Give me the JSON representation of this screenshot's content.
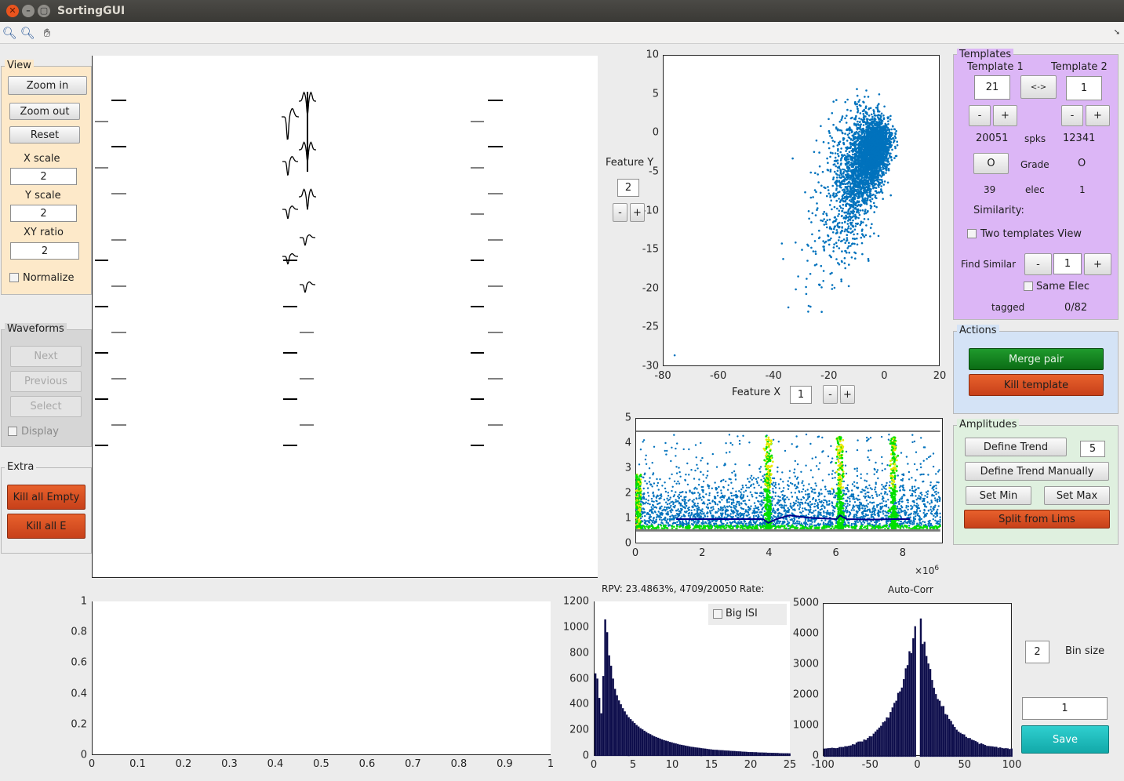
{
  "window": {
    "title": "SortingGUI"
  },
  "toolbar": {
    "zoom_in_icon": "zoom-in-icon",
    "zoom_out_icon": "zoom-out-icon",
    "pan_icon": "pan-hand-icon",
    "arrow_icon": "arrow-icon"
  },
  "view_panel": {
    "title": "View",
    "zoom_in": "Zoom in",
    "zoom_out": "Zoom out",
    "reset": "Reset",
    "x_scale_label": "X scale",
    "x_scale": "2",
    "y_scale_label": "Y scale",
    "y_scale": "2",
    "xy_ratio_label": "XY ratio",
    "xy_ratio": "2",
    "normalize": "Normalize"
  },
  "waveforms_panel": {
    "title": "Waveforms",
    "next": "Next",
    "previous": "Previous",
    "select": "Select",
    "display": "Display"
  },
  "extra_panel": {
    "title": "Extra",
    "kill_all_empty": "Kill all Empty",
    "kill_all_e": "Kill all E"
  },
  "feature": {
    "y_label": "Feature Y",
    "y_value": "2",
    "minus": "-",
    "plus": "+",
    "x_label": "Feature X",
    "x_value": "1"
  },
  "templates_panel": {
    "title": "Templates",
    "template1_label": "Template 1",
    "template2_label": "Template 2",
    "template1": "21",
    "template2": "1",
    "swap": "<->",
    "minus": "-",
    "plus": "+",
    "spks1": "20051",
    "spks_label": "spks",
    "spks2": "12341",
    "grade_button": "O",
    "grade_label": "Grade",
    "grade2": "O",
    "elec1": "39",
    "elec_label": "elec",
    "elec2": "1",
    "similarity_label": "Similarity:",
    "two_templates_view": "Two templates View",
    "find_similar_label": "Find Similar",
    "find_similar": "1",
    "same_elec": "Same Elec",
    "tagged_label": "tagged",
    "tagged_value": "0/82"
  },
  "actions_panel": {
    "title": "Actions",
    "merge_pair": "Merge pair",
    "kill_template": "Kill template"
  },
  "amplitudes_panel": {
    "title": "Amplitudes",
    "define_trend": "Define Trend",
    "trend_value": "5",
    "define_trend_manually": "Define Trend Manually",
    "set_min": "Set Min",
    "set_max": "Set Max",
    "split_from_lims": "Split from Lims"
  },
  "isi": {
    "rpv_text": "RPV: 23.4863%, 4709/20050 Rate:",
    "big_isi": "Big ISI"
  },
  "autocorr": {
    "title": "Auto-Corr",
    "bin_size_label": "Bin size",
    "bin_size": "2"
  },
  "save_panel": {
    "value": "1",
    "save": "Save"
  },
  "colors": {
    "scatter": "#0072bd",
    "trend": "#00008b",
    "highlight_green": "#00e000",
    "highlight_yellow": "#e8e800",
    "bars": "#0c0c4a"
  },
  "chart_data": [
    {
      "id": "feature-scatter",
      "type": "scatter",
      "xlim": [
        -80,
        20
      ],
      "ylim": [
        -30,
        10
      ],
      "xticks": [
        "-80",
        "-60",
        "-40",
        "-20",
        "0",
        "20"
      ],
      "yticks": [
        "10",
        "5",
        "0",
        "-5",
        "-10",
        "-15",
        "-20",
        "-25",
        "-30"
      ],
      "xlabel": "Feature X",
      "ylabel": "Feature Y",
      "cloud": {
        "center": [
          -12,
          -4
        ],
        "major_slope": 0.45,
        "n": 3500
      }
    },
    {
      "id": "amplitudes",
      "type": "scatter",
      "xlim": [
        0,
        9.2
      ],
      "ylim": [
        0,
        5
      ],
      "xticks": [
        "0",
        "2",
        "4",
        "6",
        "8"
      ],
      "yticks": [
        "5",
        "4",
        "3",
        "2",
        "1",
        "0"
      ],
      "x_multiplier": "×10",
      "x_exponent": "6",
      "lines": {
        "upper": 4.5,
        "lower": 0.55
      },
      "bursts": [
        3.95,
        6.1,
        7.7
      ],
      "trend": [
        [
          1.2,
          1.0
        ],
        [
          2.5,
          1.0
        ],
        [
          3.8,
          1.0
        ],
        [
          3.95,
          0.85
        ],
        [
          4.2,
          1.0
        ],
        [
          4.6,
          1.15
        ],
        [
          5.2,
          1.05
        ],
        [
          6.0,
          1.0
        ],
        [
          6.1,
          1.15
        ],
        [
          6.3,
          1.0
        ],
        [
          7.0,
          0.98
        ],
        [
          7.7,
          1.0
        ],
        [
          8.2,
          1.0
        ]
      ]
    },
    {
      "id": "empty-axes",
      "type": "line",
      "xlim": [
        0,
        1
      ],
      "ylim": [
        0,
        1
      ],
      "xticks": [
        "0",
        "0.1",
        "0.2",
        "0.3",
        "0.4",
        "0.5",
        "0.6",
        "0.7",
        "0.8",
        "0.9",
        "1"
      ],
      "yticks": [
        "1",
        "0.8",
        "0.6",
        "0.4",
        "0.2",
        "0"
      ]
    },
    {
      "id": "isi-histogram",
      "type": "bar",
      "xlim": [
        0,
        25
      ],
      "ylim": [
        0,
        1200
      ],
      "xticks": [
        "0",
        "5",
        "10",
        "15",
        "20",
        "25"
      ],
      "yticks": [
        "1200",
        "1000",
        "800",
        "600",
        "400",
        "200",
        "0"
      ],
      "values": [
        640,
        600,
        450,
        330,
        620,
        1060,
        960,
        780,
        700,
        600,
        520,
        470,
        430,
        400,
        370,
        345,
        320,
        300,
        285,
        270,
        255,
        240,
        228,
        215,
        205,
        195,
        185,
        175,
        168,
        160,
        152,
        146,
        140,
        134,
        128,
        122,
        118,
        113,
        108,
        104,
        100,
        96,
        92,
        88,
        85,
        82,
        79,
        76,
        73,
        70,
        68,
        66,
        64,
        62,
        60,
        58,
        56,
        54,
        52,
        50,
        48,
        47,
        46,
        45,
        44,
        43,
        42,
        41,
        40,
        39,
        38,
        37,
        36,
        35,
        34,
        33,
        32,
        31,
        30,
        30,
        29,
        28,
        28,
        27,
        26,
        26,
        25,
        25,
        24,
        24,
        23,
        23,
        22,
        22,
        21,
        21,
        20,
        20,
        20,
        19
      ]
    },
    {
      "id": "auto-corr",
      "type": "bar",
      "title": "Auto-Corr",
      "xlim": [
        -100,
        100
      ],
      "ylim": [
        0,
        5000
      ],
      "xticks": [
        "-100",
        "-50",
        "0",
        "50",
        "100"
      ],
      "yticks": [
        "5000",
        "4000",
        "3000",
        "2000",
        "1000",
        "0"
      ],
      "bin": 2,
      "peak": 4900,
      "base": 200,
      "gap_at_zero": true
    }
  ]
}
